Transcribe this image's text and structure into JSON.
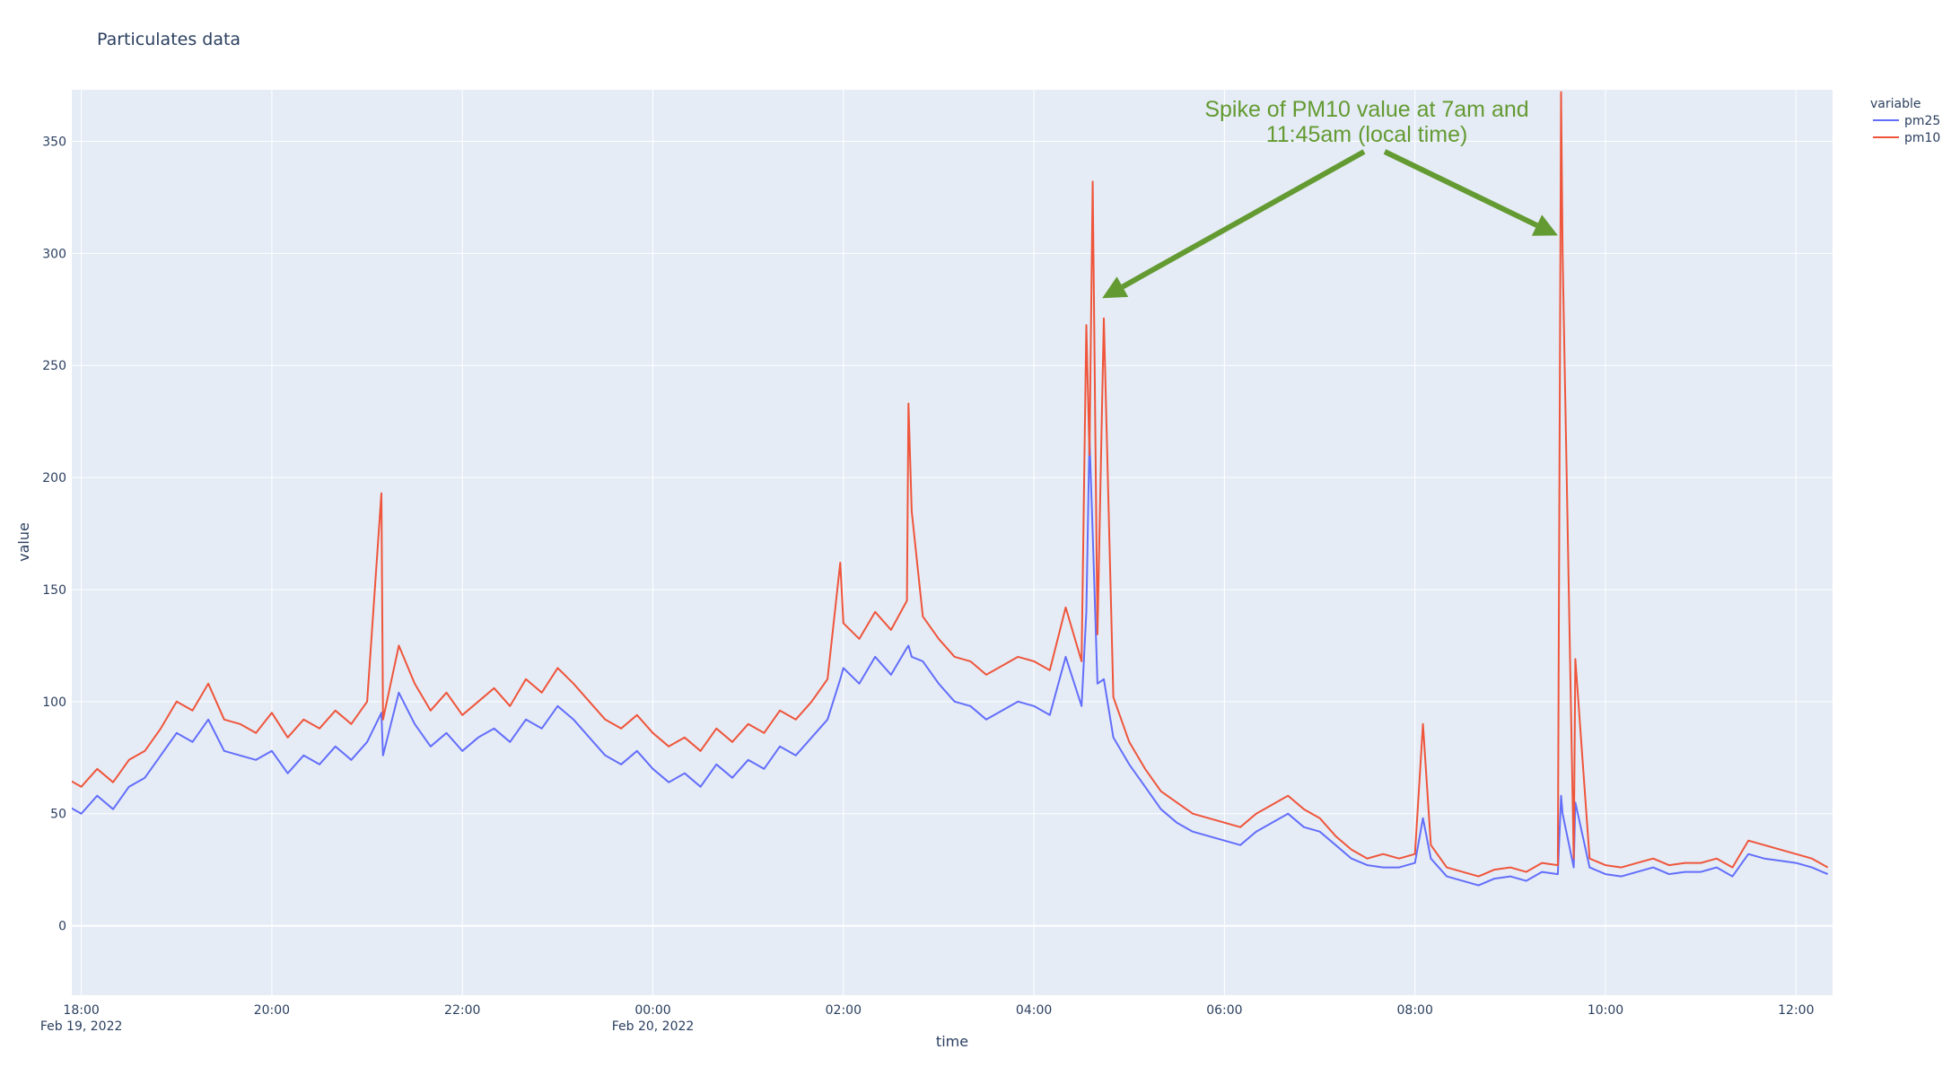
{
  "chart_data": {
    "type": "line",
    "title": "Particulates data",
    "xlabel": "time",
    "ylabel": "value",
    "legend_title": "variable",
    "legend_position": "top-right outside",
    "grid": true,
    "x_start": "2022-02-19 17:50",
    "x_step_minutes": 10,
    "xlim": [
      "2022-02-19 17:54",
      "2022-02-20 12:23"
    ],
    "ylim": [
      -31,
      373
    ],
    "y_ticks": [
      "0",
      "50",
      "100",
      "150",
      "200",
      "250",
      "300",
      "350"
    ],
    "x_ticks": [
      {
        "label": "18:00",
        "sub": "Feb 19, 2022",
        "t": "2022-02-19 18:00"
      },
      {
        "label": "20:00",
        "sub": "",
        "t": "2022-02-19 20:00"
      },
      {
        "label": "22:00",
        "sub": "",
        "t": "2022-02-19 22:00"
      },
      {
        "label": "00:00",
        "sub": "Feb 20, 2022",
        "t": "2022-02-20 00:00"
      },
      {
        "label": "02:00",
        "sub": "",
        "t": "2022-02-20 02:00"
      },
      {
        "label": "04:00",
        "sub": "",
        "t": "2022-02-20 04:00"
      },
      {
        "label": "06:00",
        "sub": "",
        "t": "2022-02-20 06:00"
      },
      {
        "label": "08:00",
        "sub": "",
        "t": "2022-02-20 08:00"
      },
      {
        "label": "10:00",
        "sub": "",
        "t": "2022-02-20 10:00"
      },
      {
        "label": "12:00",
        "sub": "",
        "t": "2022-02-20 12:00"
      }
    ],
    "series": [
      {
        "name": "pm25",
        "color": "#636efa",
        "values": [
          54,
          50,
          58,
          52,
          62,
          66,
          76,
          86,
          82,
          92,
          78,
          76,
          74,
          78,
          68,
          76,
          72,
          80,
          74,
          82,
          76,
          104,
          90,
          80,
          86,
          78,
          84,
          88,
          82,
          92,
          88,
          98,
          92,
          84,
          76,
          72,
          78,
          70,
          64,
          68,
          62,
          72,
          66,
          74,
          70,
          80,
          76,
          84,
          92,
          115,
          108,
          120,
          112,
          124,
          118,
          108,
          100,
          98,
          92,
          96,
          100,
          98,
          94,
          120,
          98,
          108,
          84,
          72,
          62,
          52,
          46,
          42,
          40,
          38,
          36,
          42,
          46,
          50,
          44,
          42,
          36,
          30,
          27,
          26,
          26,
          28,
          30,
          22,
          20,
          18,
          21,
          22,
          20,
          24,
          23,
          26,
          26,
          23,
          22,
          24,
          26,
          23,
          24,
          24,
          26,
          22,
          32,
          30,
          29,
          28,
          26,
          23
        ],
        "spikes": [
          [
            "2022-02-19 21:09",
            95
          ],
          [
            "2022-02-20 01:58",
            110
          ],
          [
            "2022-02-20 02:41",
            125
          ],
          [
            "2022-02-20 02:43",
            120
          ],
          [
            "2022-02-20 04:33",
            140
          ],
          [
            "2022-02-20 04:35",
            218
          ],
          [
            "2022-02-20 04:37",
            175
          ],
          [
            "2022-02-20 04:44",
            110
          ],
          [
            "2022-02-20 08:05",
            48
          ],
          [
            "2022-02-20 09:32",
            58
          ],
          [
            "2022-02-20 09:33",
            50
          ],
          [
            "2022-02-20 09:41",
            55
          ]
        ]
      },
      {
        "name": "pm10",
        "color": "#ef553b",
        "values": [
          66,
          62,
          70,
          64,
          74,
          78,
          88,
          100,
          96,
          108,
          92,
          90,
          86,
          95,
          84,
          92,
          88,
          96,
          90,
          100,
          92,
          125,
          108,
          96,
          104,
          94,
          100,
          106,
          98,
          110,
          104,
          115,
          108,
          100,
          92,
          88,
          94,
          86,
          80,
          84,
          78,
          88,
          82,
          90,
          86,
          96,
          92,
          100,
          110,
          135,
          128,
          140,
          132,
          145,
          138,
          128,
          120,
          118,
          112,
          116,
          120,
          118,
          114,
          142,
          118,
          130,
          102,
          82,
          70,
          60,
          55,
          50,
          48,
          46,
          44,
          50,
          54,
          58,
          52,
          48,
          40,
          34,
          30,
          32,
          30,
          32,
          36,
          26,
          24,
          22,
          25,
          26,
          24,
          28,
          27,
          30,
          30,
          27,
          26,
          28,
          30,
          27,
          28,
          28,
          30,
          26,
          38,
          36,
          34,
          32,
          30,
          26
        ],
        "spikes": [
          [
            "2022-02-19 21:09",
            193
          ],
          [
            "2022-02-20 01:58",
            162
          ],
          [
            "2022-02-20 02:41",
            233
          ],
          [
            "2022-02-20 02:43",
            185
          ],
          [
            "2022-02-20 04:33",
            268
          ],
          [
            "2022-02-20 04:35",
            210
          ],
          [
            "2022-02-20 04:37",
            332
          ],
          [
            "2022-02-20 04:44",
            271
          ],
          [
            "2022-02-20 08:05",
            90
          ],
          [
            "2022-02-20 09:32",
            372
          ],
          [
            "2022-02-20 09:33",
            300
          ],
          [
            "2022-02-20 09:41",
            119
          ]
        ]
      }
    ],
    "annotation": {
      "line1": "Spike of PM10 value at 7am and",
      "line2": "11:45am (local time)",
      "color": "#649a32",
      "arrow_targets": [
        [
          "2022-02-20 04:43",
          280
        ],
        [
          "2022-02-20 09:30",
          308
        ]
      ]
    }
  }
}
